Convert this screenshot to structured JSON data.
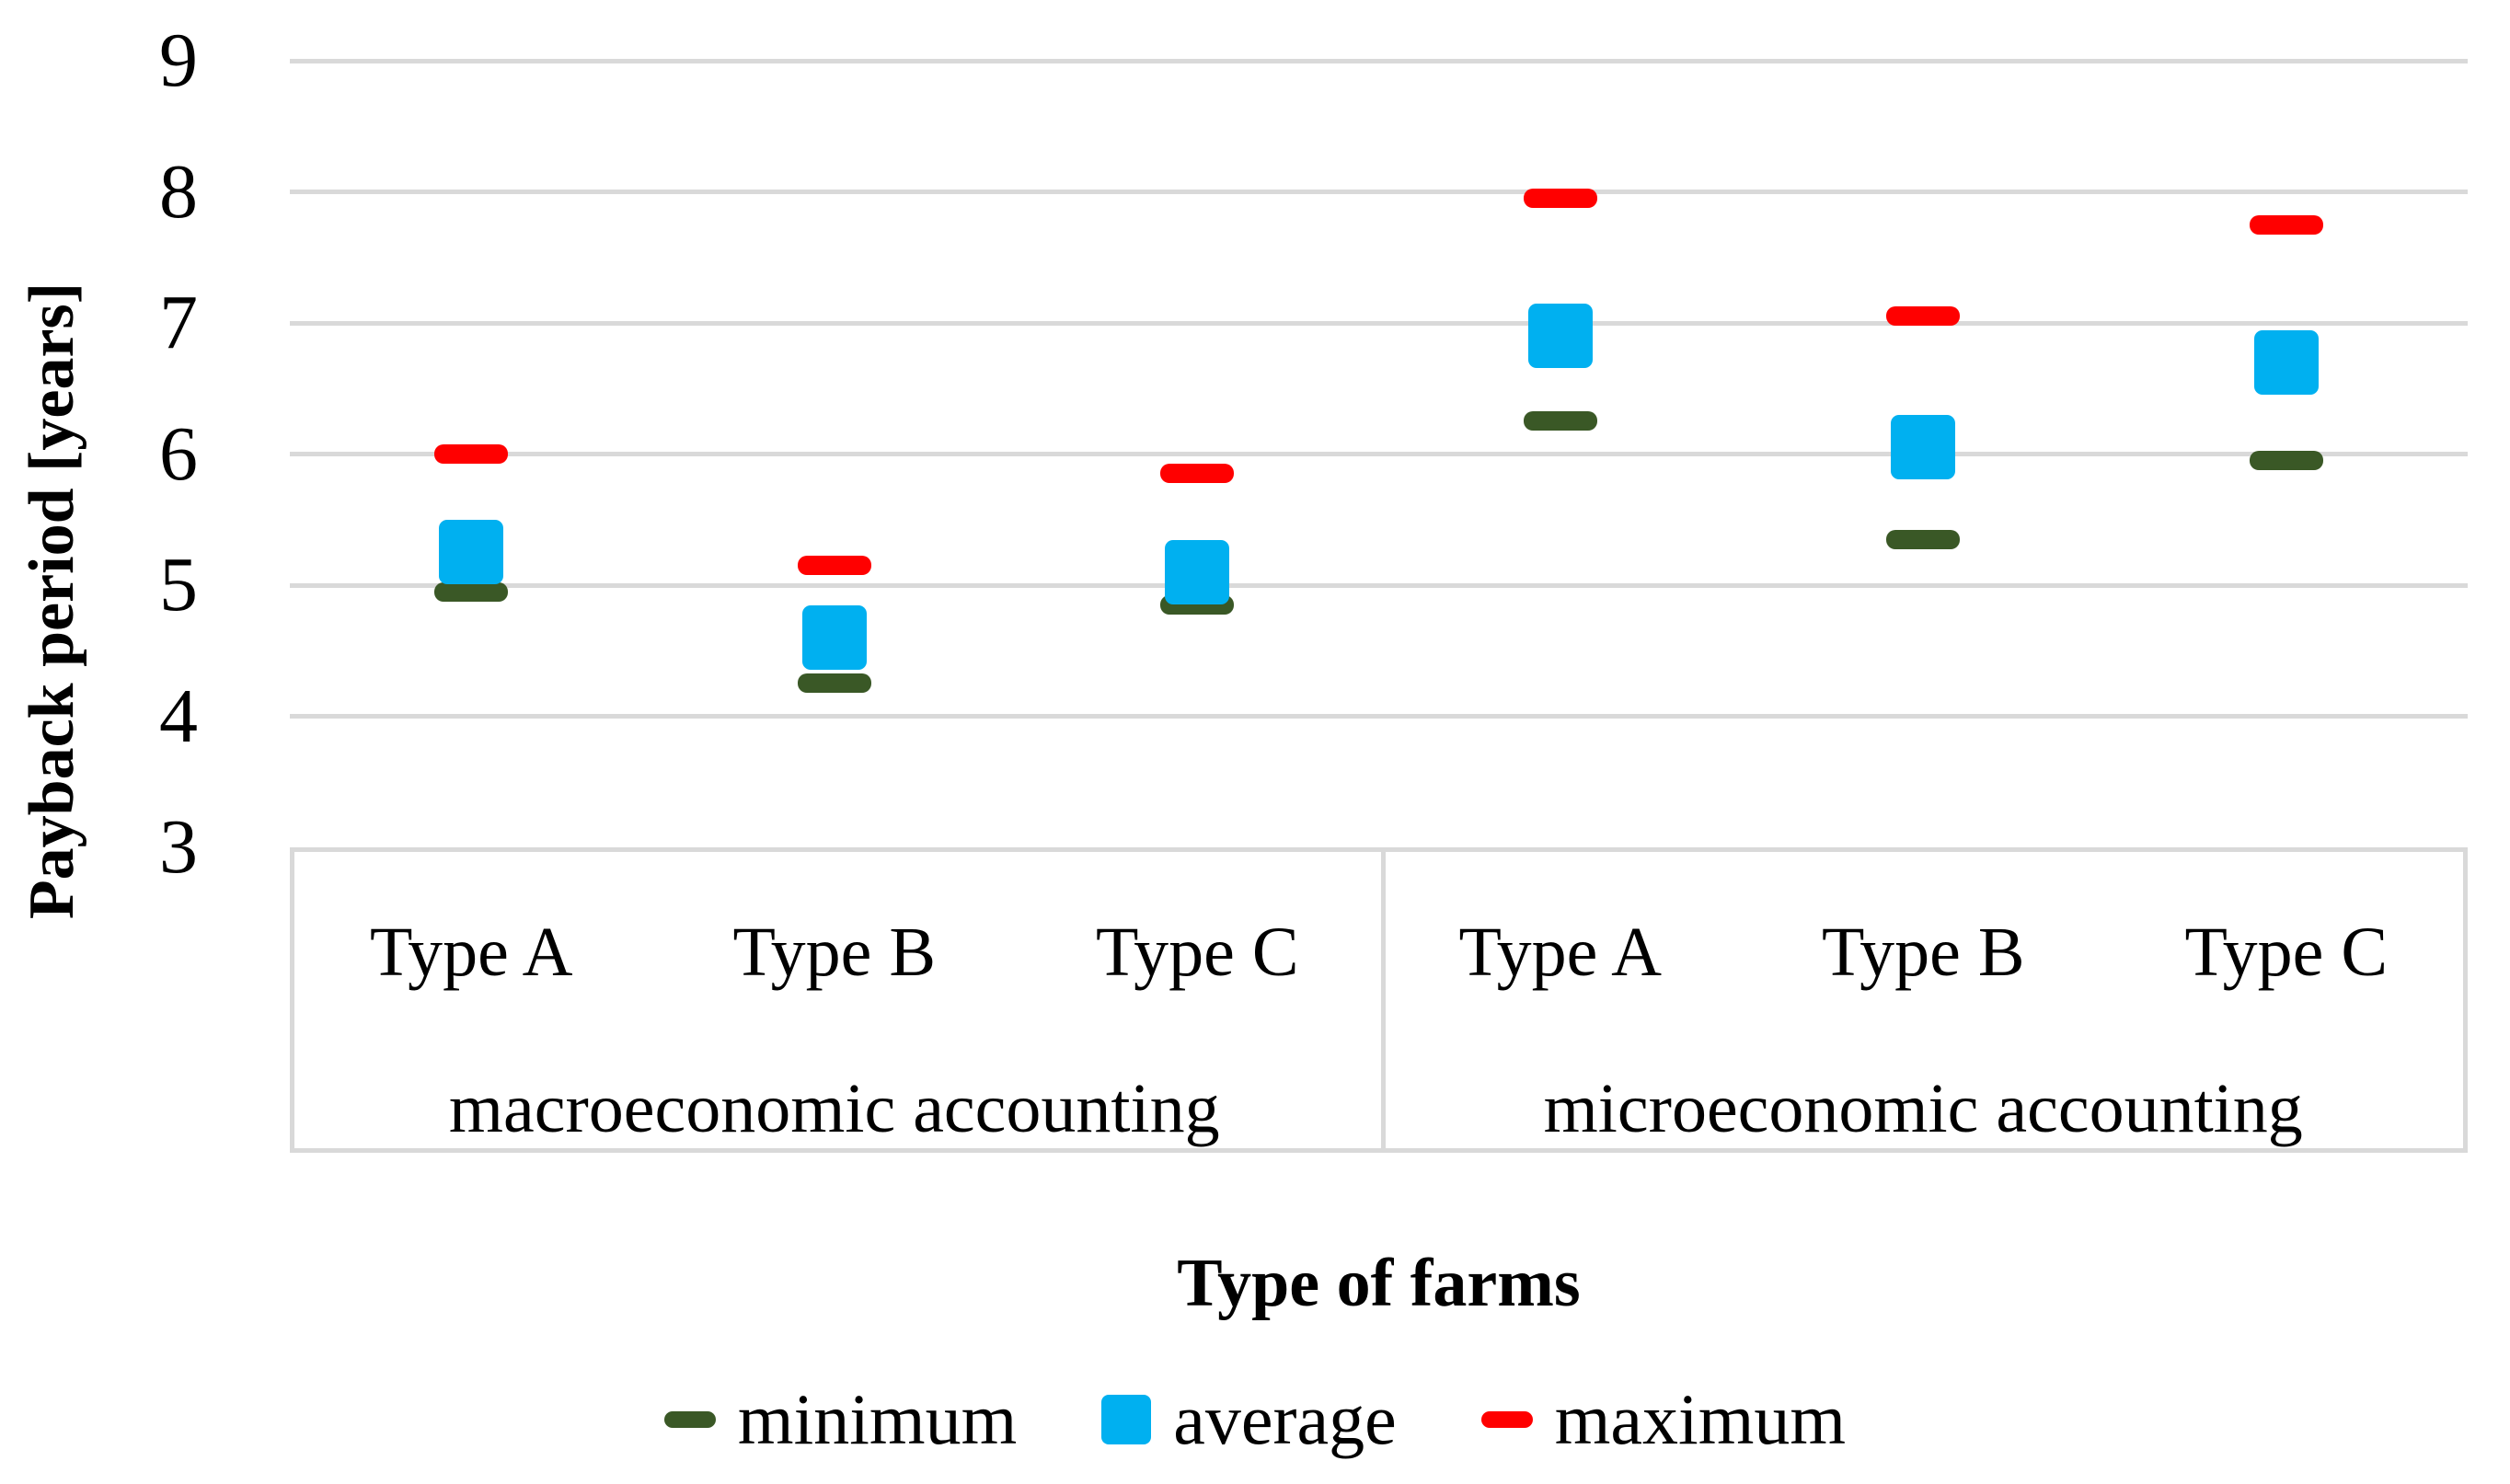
{
  "page": {
    "background": "#FFFFFF"
  },
  "chart_data": {
    "type": "scatter",
    "subtype": "grouped-min-avg-max-markers",
    "title": "",
    "xlabel": "Type of farms",
    "ylabel": "Payback period [years]",
    "ylim": [
      3,
      9
    ],
    "yticks": [
      9,
      8,
      7,
      6,
      5,
      4,
      3
    ],
    "grid": true,
    "gridline_color": "#D9D9D9",
    "frame_color": "#D9D9D9",
    "groups": [
      "macroeconomic accounting",
      "microeconomic accounting"
    ],
    "categories": [
      "Type A",
      "Type B",
      "Type C",
      "Type A",
      "Type B",
      "Type C"
    ],
    "category_group_index": [
      0,
      0,
      0,
      1,
      1,
      1
    ],
    "series": [
      {
        "name": "minimum",
        "marker": "dash",
        "color": "#3A5826",
        "values": [
          4.95,
          4.25,
          4.85,
          6.25,
          5.35,
          5.95
        ]
      },
      {
        "name": "average",
        "marker": "square",
        "color": "#00B0F0",
        "values": [
          5.25,
          4.6,
          5.1,
          6.9,
          6.05,
          6.7
        ]
      },
      {
        "name": "maximum",
        "marker": "dash",
        "color": "#FF0000",
        "values": [
          6.0,
          5.15,
          5.85,
          7.95,
          7.05,
          7.75
        ]
      }
    ],
    "legend_position": "bottom"
  }
}
